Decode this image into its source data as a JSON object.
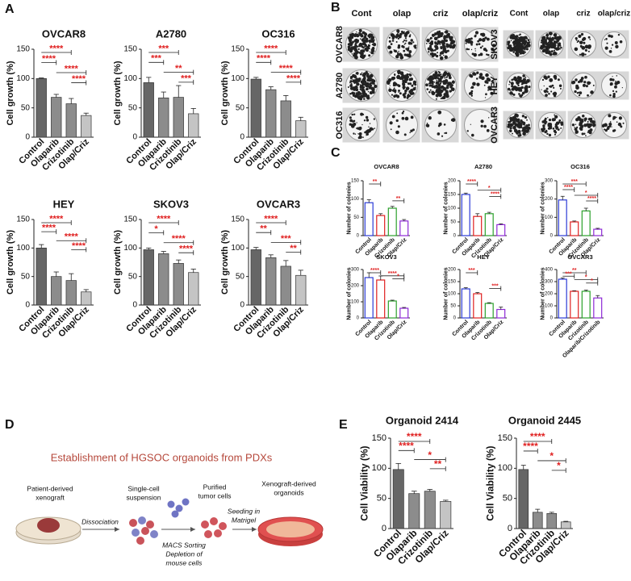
{
  "panel_labels": [
    "A",
    "B",
    "C",
    "D",
    "E"
  ],
  "chart_data": [
    {
      "type": "bar",
      "title": "OVCAR8",
      "y_label": "Cell growth (%)",
      "categories": [
        "Control",
        "Olaparib",
        "Crizotinib",
        "Olap/Criz"
      ],
      "values": [
        100,
        68,
        57,
        37
      ],
      "errors": [
        1,
        5,
        9,
        4
      ],
      "colors": [
        "#666666",
        "#8c8c8c",
        "#8c8c8c",
        "#c4c4c4"
      ],
      "bar_style": "filled",
      "ylim": [
        0,
        150
      ],
      "yticks": [
        0,
        50,
        100,
        150
      ],
      "annotations": [
        "****",
        "****",
        "****",
        "****"
      ],
      "annotation_color": "#e02020"
    },
    {
      "type": "bar",
      "title": "A2780",
      "y_label": "Cell growth (%)",
      "categories": [
        "Control",
        "Olaparib",
        "Crizotinib",
        "Olap/Criz"
      ],
      "values": [
        93,
        67,
        68,
        40
      ],
      "errors": [
        9,
        10,
        20,
        9
      ],
      "colors": [
        "#666666",
        "#8c8c8c",
        "#8c8c8c",
        "#c4c4c4"
      ],
      "bar_style": "filled",
      "ylim": [
        0,
        150
      ],
      "yticks": [
        0,
        50,
        100,
        150
      ],
      "annotations": [
        "***",
        "***",
        "**",
        "***"
      ],
      "annotation_color": "#e02020"
    },
    {
      "type": "bar",
      "title": "OC316",
      "y_label": "Cell growth (%)",
      "categories": [
        "Control",
        "Olaparib",
        "Crizotinib",
        "Olap/Criz"
      ],
      "values": [
        99,
        81,
        62,
        28
      ],
      "errors": [
        3,
        5,
        9,
        6
      ],
      "colors": [
        "#666666",
        "#8c8c8c",
        "#8c8c8c",
        "#c4c4c4"
      ],
      "bar_style": "filled",
      "ylim": [
        0,
        150
      ],
      "yticks": [
        0,
        50,
        100,
        150
      ],
      "annotations": [
        "****",
        "****",
        "****",
        "****"
      ],
      "annotation_color": "#e02020"
    },
    {
      "type": "bar",
      "title": "HEY",
      "y_label": "Cell growth (%)",
      "categories": [
        "Control",
        "Olaparib",
        "Crizotinib",
        "Olap/Criz"
      ],
      "values": [
        100,
        50,
        43,
        23
      ],
      "errors": [
        6,
        8,
        12,
        4
      ],
      "colors": [
        "#666666",
        "#8c8c8c",
        "#8c8c8c",
        "#c4c4c4"
      ],
      "bar_style": "filled",
      "ylim": [
        0,
        150
      ],
      "yticks": [
        0,
        50,
        100,
        150
      ],
      "annotations": [
        "****",
        "****",
        "****",
        "****"
      ],
      "annotation_color": "#e02020"
    },
    {
      "type": "bar",
      "title": "SKOV3",
      "y_label": "Cell growth (%)",
      "categories": [
        "Control",
        "Olaparib",
        "Crizotinib",
        "Olap/Criz"
      ],
      "values": [
        97,
        90,
        73,
        57
      ],
      "errors": [
        3,
        4,
        6,
        6
      ],
      "colors": [
        "#666666",
        "#8c8c8c",
        "#8c8c8c",
        "#c4c4c4"
      ],
      "bar_style": "filled",
      "ylim": [
        0,
        150
      ],
      "yticks": [
        0,
        50,
        100,
        150
      ],
      "annotations": [
        "****",
        "*",
        "****",
        "****"
      ],
      "annotation_color": "#e02020"
    },
    {
      "type": "bar",
      "title": "OVCAR3",
      "y_label": "Cell growth (%)",
      "categories": [
        "Control",
        "Olaparib",
        "Crizotinib",
        "Olap/Criz"
      ],
      "values": [
        97,
        83,
        68,
        52
      ],
      "errors": [
        4,
        5,
        10,
        9
      ],
      "colors": [
        "#666666",
        "#8c8c8c",
        "#8c8c8c",
        "#c4c4c4"
      ],
      "bar_style": "filled",
      "ylim": [
        0,
        150
      ],
      "yticks": [
        0,
        50,
        100,
        150
      ],
      "annotations": [
        "****",
        "**",
        "***",
        "**"
      ],
      "annotation_color": "#e02020"
    },
    {
      "type": "bar",
      "title": "OVCAR8",
      "y_label": "Number of colonies",
      "categories": [
        "Control",
        "Olaparib",
        "Crizotinib",
        "Olap/Criz"
      ],
      "values": [
        90,
        55,
        75,
        40
      ],
      "errors": [
        8,
        5,
        5,
        4
      ],
      "colors": [
        "#2b3bd6",
        "#e02020",
        "#2ca02c",
        "#8e2ad6"
      ],
      "bar_style": "outline",
      "ylim": [
        0,
        150
      ],
      "yticks": [
        0,
        50,
        100,
        150
      ],
      "annotations": [
        "**",
        "**"
      ],
      "annotation_color": "#e02020"
    },
    {
      "type": "bar",
      "title": "A2780",
      "y_label": "Number of colonies",
      "categories": [
        "Control",
        "Olaparib",
        "Crizotinib",
        "Olap/Criz"
      ],
      "values": [
        150,
        70,
        80,
        40
      ],
      "errors": [
        5,
        10,
        5,
        3
      ],
      "colors": [
        "#2b3bd6",
        "#e02020",
        "#2ca02c",
        "#8e2ad6"
      ],
      "bar_style": "outline",
      "ylim": [
        0,
        200
      ],
      "yticks": [
        0,
        50,
        100,
        150,
        200
      ],
      "annotations": [
        "****",
        "*",
        "****"
      ],
      "annotation_color": "#e02020"
    },
    {
      "type": "bar",
      "title": "OC316",
      "y_label": "Number of colonies",
      "categories": [
        "Control",
        "Olaparib",
        "Crizotinib",
        "Olap/Criz"
      ],
      "values": [
        195,
        75,
        135,
        35
      ],
      "errors": [
        20,
        5,
        15,
        5
      ],
      "colors": [
        "#2b3bd6",
        "#e02020",
        "#2ca02c",
        "#8e2ad6"
      ],
      "bar_style": "outline",
      "ylim": [
        0,
        300
      ],
      "yticks": [
        0,
        100,
        200,
        300
      ],
      "annotations": [
        "***",
        "****",
        "*",
        "****"
      ],
      "annotation_color": "#e02020"
    },
    {
      "type": "bar",
      "title": "SKOV3",
      "y_label": "Number of colonies",
      "categories": [
        "Control",
        "Olaparib",
        "Crizotinib",
        "Olap/Criz"
      ],
      "values": [
        250,
        235,
        105,
        60
      ],
      "errors": [
        30,
        25,
        5,
        5
      ],
      "colors": [
        "#2b3bd6",
        "#e02020",
        "#2ca02c",
        "#8e2ad6"
      ],
      "bar_style": "outline",
      "ylim": [
        0,
        300
      ],
      "yticks": [
        0,
        100,
        200,
        300
      ],
      "annotations": [
        "****",
        "****",
        "*"
      ],
      "annotation_color": "#e02020"
    },
    {
      "type": "bar",
      "title": "HEY",
      "y_label": "Number of colonies",
      "categories": [
        "Control",
        "Olaparib",
        "Crizotinib",
        "Olap/Criz"
      ],
      "values": [
        120,
        100,
        60,
        35
      ],
      "errors": [
        5,
        5,
        3,
        10
      ],
      "colors": [
        "#2b3bd6",
        "#e02020",
        "#2ca02c",
        "#8e2ad6"
      ],
      "bar_style": "outline",
      "ylim": [
        0,
        200
      ],
      "yticks": [
        0,
        50,
        100,
        150,
        200
      ],
      "annotations": [
        "***",
        "***"
      ],
      "annotation_color": "#e02020"
    },
    {
      "type": "bar",
      "title": "OVCAR3",
      "y_label": "Number of colonies",
      "categories": [
        "Control",
        "Olaparib",
        "Crizotinib",
        "Olaparib/Crizotinib"
      ],
      "values": [
        320,
        220,
        220,
        165
      ],
      "errors": [
        10,
        5,
        10,
        20
      ],
      "colors": [
        "#2b3bd6",
        "#e02020",
        "#2ca02c",
        "#8e2ad6"
      ],
      "bar_style": "outline",
      "ylim": [
        0,
        400
      ],
      "yticks": [
        0,
        100,
        200,
        300,
        400
      ],
      "annotations": [
        "**",
        "***",
        "*",
        "*"
      ],
      "annotation_color": "#e02020"
    },
    {
      "type": "bar",
      "title": "Organoid 2414",
      "y_label": "Cell Viability (%)",
      "categories": [
        "Control",
        "Olaparib",
        "Crizotinib",
        "Olap/Criz"
      ],
      "values": [
        98,
        58,
        62,
        45
      ],
      "errors": [
        10,
        4,
        3,
        2
      ],
      "colors": [
        "#666666",
        "#8c8c8c",
        "#8c8c8c",
        "#c4c4c4"
      ],
      "bar_style": "filled",
      "ylim": [
        0,
        150
      ],
      "yticks": [
        0,
        50,
        100,
        150
      ],
      "annotations": [
        "****",
        "****",
        "*",
        "**"
      ],
      "annotation_color": "#e02020"
    },
    {
      "type": "bar",
      "title": "Organoid 2445",
      "y_label": "Cell Viability (%)",
      "categories": [
        "Control",
        "Olaparib",
        "Crizotinib",
        "Olap/Criz"
      ],
      "values": [
        98,
        27,
        25,
        11
      ],
      "errors": [
        7,
        5,
        2,
        1
      ],
      "colors": [
        "#666666",
        "#8c8c8c",
        "#8c8c8c",
        "#c4c4c4"
      ],
      "bar_style": "filled",
      "ylim": [
        0,
        150
      ],
      "yticks": [
        0,
        50,
        100,
        150
      ],
      "annotations": [
        "****",
        "****",
        "*",
        "*"
      ],
      "annotation_color": "#e02020"
    }
  ],
  "colony_assay": {
    "left_columns": [
      "Cont",
      "olap",
      "criz",
      "olap/criz"
    ],
    "left_rows": [
      "OVCAR8",
      "A2780",
      "OC316"
    ],
    "right_columns": [
      "Cont",
      "olap",
      "criz",
      "olap/criz"
    ],
    "right_rows": [
      "SKOV3",
      "HEY",
      "OVCAR3"
    ]
  },
  "diagram": {
    "title": "Establishment of HGSOC organoids from PDXs",
    "xenograft": [
      "Patient-derived",
      "xenograft"
    ],
    "dissociation": "Dissociation",
    "suspension": [
      "Single-cell",
      "suspension"
    ],
    "purified": [
      "Purified",
      "tumor cells"
    ],
    "sorting": [
      "MACS Sorting",
      "Depletion of",
      "mouse cells"
    ],
    "seeding": [
      "Seeding in",
      "Matrigel"
    ],
    "organoids": [
      "Xenograft-derived",
      "organoids"
    ]
  }
}
